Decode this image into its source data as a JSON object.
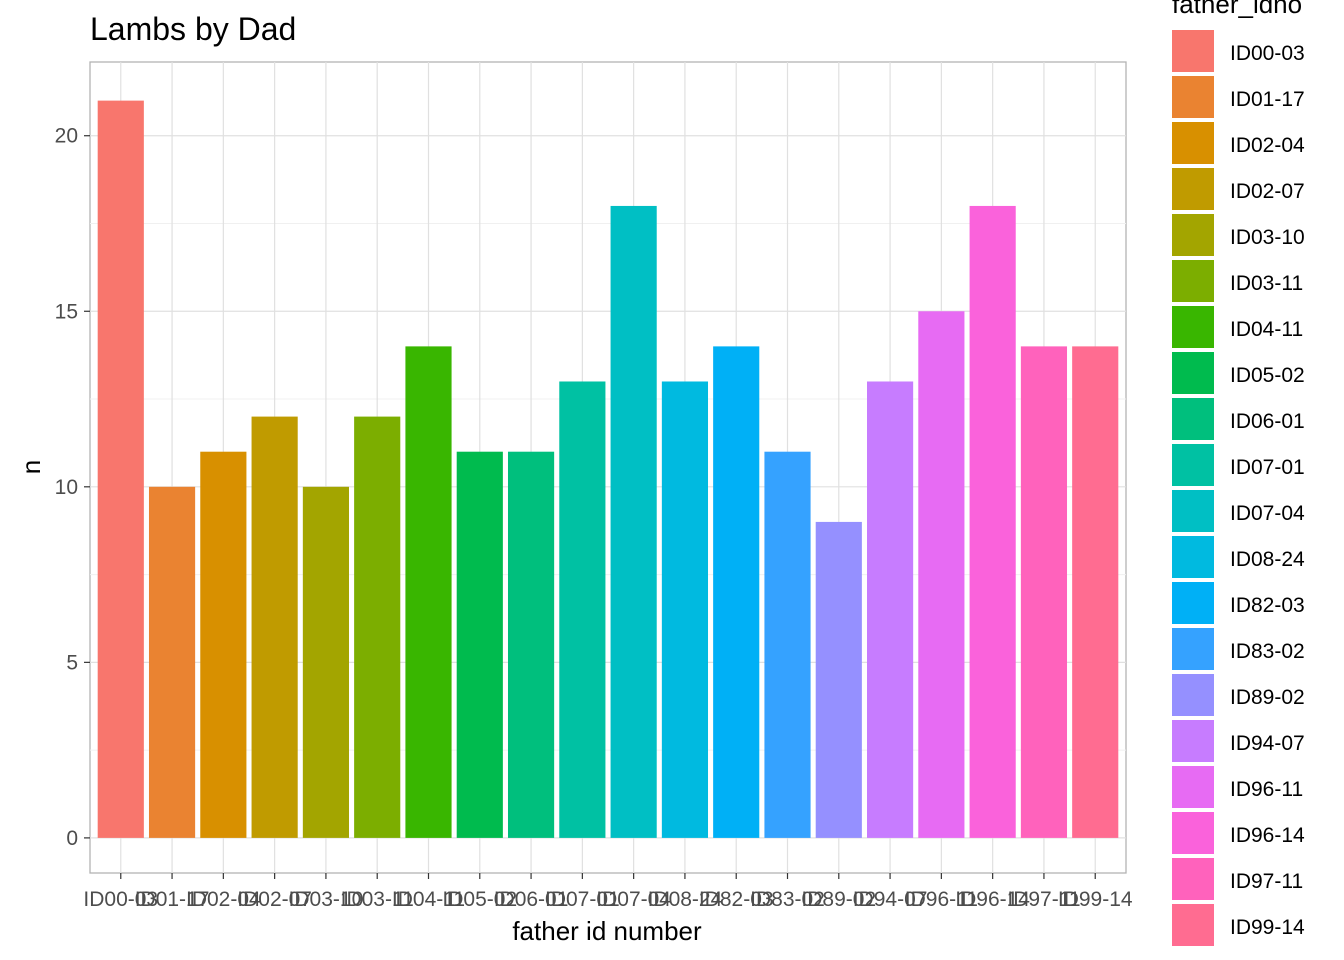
{
  "chart_data": {
    "type": "bar",
    "title": "Lambs by Dad",
    "xlabel": "father id number",
    "ylabel": "n",
    "ylim": [
      0,
      22
    ],
    "yticks": [
      0,
      5,
      10,
      15,
      20
    ],
    "grid": true,
    "legend_title": "father_idno",
    "legend_position": "right",
    "categories": [
      "ID00-03",
      "ID01-17",
      "ID02-04",
      "ID02-07",
      "ID03-10",
      "ID03-11",
      "ID04-11",
      "ID05-02",
      "ID06-01",
      "ID07-01",
      "ID07-04",
      "ID08-24",
      "ID82-03",
      "ID83-02",
      "ID89-02",
      "ID94-07",
      "ID96-11",
      "ID96-14",
      "ID97-11",
      "ID99-14"
    ],
    "values": [
      21,
      10,
      11,
      12,
      10,
      12,
      14,
      11,
      11,
      13,
      18,
      13,
      14,
      11,
      9,
      13,
      15,
      18,
      14,
      14
    ],
    "colors": [
      "#F8766D",
      "#EA8331",
      "#D89000",
      "#C09B00",
      "#A3A500",
      "#7CAE00",
      "#39B600",
      "#00BB4E",
      "#00BF7D",
      "#00C1A3",
      "#00BFC4",
      "#00BAE0",
      "#00B0F6",
      "#35A2FF",
      "#9590FF",
      "#C77CFF",
      "#E76BF3",
      "#FA62DB",
      "#FF62BC",
      "#FF6C91"
    ]
  }
}
